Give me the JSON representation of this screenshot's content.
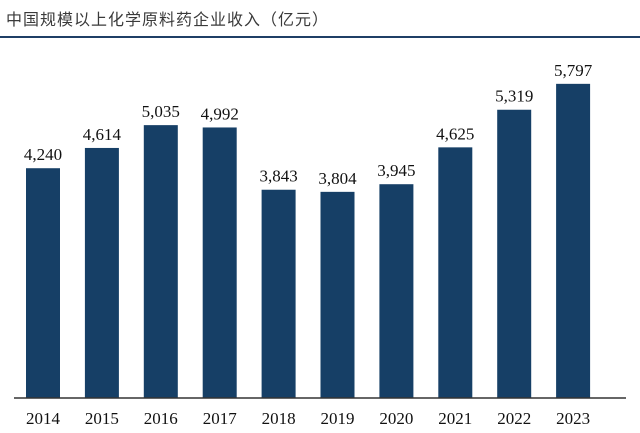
{
  "chart_data": {
    "type": "bar",
    "title": "中国规模以上化学原料药企业收入（亿元）",
    "categories": [
      "2014",
      "2015",
      "2016",
      "2017",
      "2018",
      "2019",
      "2020",
      "2021",
      "2022",
      "2023"
    ],
    "values": [
      4240,
      4614,
      5035,
      4992,
      3843,
      3804,
      3945,
      4625,
      5319,
      5797
    ],
    "value_labels": [
      "4,240",
      "4,614",
      "5,035",
      "4,992",
      "3,843",
      "3,804",
      "3,945",
      "4,625",
      "5,319",
      "5,797"
    ],
    "xlabel": "",
    "ylabel": "",
    "ylim": [
      0,
      6200
    ],
    "grid": false,
    "bar_color": "#163f66",
    "axis_color": "#333333"
  }
}
